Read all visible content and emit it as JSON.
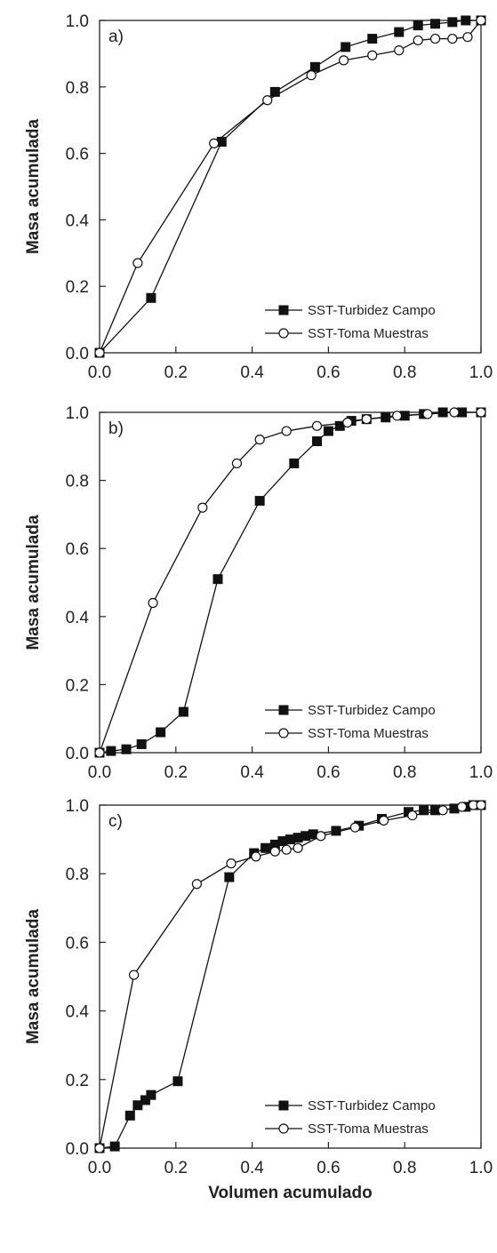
{
  "chart_data": [
    {
      "type": "line",
      "panel_label": "a)",
      "ylabel": "Masa acumulada",
      "xlabel": "",
      "xlim": [
        0,
        1
      ],
      "ylim": [
        0,
        1
      ],
      "x_ticks": [
        "0.0",
        "0.2",
        "0.4",
        "0.6",
        "0.8",
        "1.0"
      ],
      "y_ticks": [
        "0.0",
        "0.2",
        "0.4",
        "0.6",
        "0.8",
        "1.0"
      ],
      "grid": false,
      "legend_position": "bottom-right",
      "series": [
        {
          "name": "SST-Turbidez Campo",
          "marker": "square-filled",
          "x": [
            0.0,
            0.135,
            0.32,
            0.46,
            0.565,
            0.645,
            0.715,
            0.785,
            0.835,
            0.88,
            0.925,
            0.96,
            1.0
          ],
          "y": [
            0.0,
            0.165,
            0.635,
            0.785,
            0.86,
            0.92,
            0.945,
            0.965,
            0.985,
            0.99,
            0.995,
            1.0,
            1.0
          ]
        },
        {
          "name": "SST-Toma Muestras",
          "marker": "circle-open",
          "x": [
            0.0,
            0.1,
            0.3,
            0.44,
            0.555,
            0.64,
            0.715,
            0.785,
            0.835,
            0.88,
            0.925,
            0.965,
            1.0
          ],
          "y": [
            0.0,
            0.27,
            0.63,
            0.76,
            0.835,
            0.88,
            0.895,
            0.91,
            0.94,
            0.945,
            0.945,
            0.95,
            1.0
          ]
        }
      ]
    },
    {
      "type": "line",
      "panel_label": "b)",
      "ylabel": "Masa acumulada",
      "xlabel": "",
      "xlim": [
        0,
        1
      ],
      "ylim": [
        0,
        1
      ],
      "x_ticks": [
        "0.0",
        "0.2",
        "0.4",
        "0.6",
        "0.8",
        "1.0"
      ],
      "y_ticks": [
        "0.0",
        "0.2",
        "0.4",
        "0.6",
        "0.8",
        "1.0"
      ],
      "grid": false,
      "legend_position": "bottom-right",
      "series": [
        {
          "name": "SST-Turbidez Campo",
          "marker": "square-filled",
          "x": [
            0.0,
            0.03,
            0.07,
            0.11,
            0.16,
            0.22,
            0.31,
            0.42,
            0.51,
            0.57,
            0.6,
            0.63,
            0.66,
            0.7,
            0.75,
            0.8,
            0.85,
            0.9,
            0.95,
            1.0
          ],
          "y": [
            0.0,
            0.005,
            0.01,
            0.025,
            0.06,
            0.12,
            0.51,
            0.74,
            0.85,
            0.915,
            0.945,
            0.96,
            0.975,
            0.98,
            0.985,
            0.99,
            0.995,
            1.0,
            1.0,
            1.0
          ],
          "marker_step": 1
        },
        {
          "name": "SST-Toma Muestras",
          "marker": "circle-open",
          "x": [
            0.0,
            0.14,
            0.27,
            0.36,
            0.42,
            0.49,
            0.57,
            0.65,
            0.7,
            0.78,
            0.86,
            0.93,
            1.0
          ],
          "y": [
            0.0,
            0.44,
            0.72,
            0.85,
            0.92,
            0.945,
            0.96,
            0.97,
            0.98,
            0.99,
            0.995,
            1.0,
            1.0
          ]
        }
      ]
    },
    {
      "type": "line",
      "panel_label": "c)",
      "ylabel": "Masa acumulada",
      "xlabel": "Volumen acumulado",
      "xlim": [
        0,
        1
      ],
      "ylim": [
        0,
        1
      ],
      "x_ticks": [
        "0.0",
        "0.2",
        "0.4",
        "0.6",
        "0.8",
        "1.0"
      ],
      "y_ticks": [
        "0.0",
        "0.2",
        "0.4",
        "0.6",
        "0.8",
        "1.0"
      ],
      "grid": false,
      "legend_position": "bottom-right",
      "series": [
        {
          "name": "SST-Turbidez Campo",
          "marker": "square-filled",
          "x": [
            0.0,
            0.04,
            0.08,
            0.1,
            0.12,
            0.135,
            0.205,
            0.34,
            0.405,
            0.435,
            0.46,
            0.48,
            0.5,
            0.52,
            0.54,
            0.56,
            0.62,
            0.68,
            0.74,
            0.81,
            0.85,
            0.88,
            0.93,
            0.96,
            0.98,
            1.0
          ],
          "y": [
            0.0,
            0.005,
            0.095,
            0.125,
            0.14,
            0.155,
            0.195,
            0.79,
            0.86,
            0.875,
            0.885,
            0.895,
            0.9,
            0.905,
            0.91,
            0.915,
            0.925,
            0.94,
            0.96,
            0.98,
            0.985,
            0.985,
            0.99,
            0.995,
            1.0,
            1.0
          ]
        },
        {
          "name": "SST-Toma Muestras",
          "marker": "circle-open",
          "x": [
            0.0,
            0.09,
            0.255,
            0.345,
            0.41,
            0.46,
            0.49,
            0.52,
            0.58,
            0.67,
            0.745,
            0.82,
            0.9,
            0.95,
            0.98,
            1.0
          ],
          "y": [
            0.0,
            0.505,
            0.77,
            0.83,
            0.85,
            0.865,
            0.87,
            0.875,
            0.91,
            0.935,
            0.955,
            0.97,
            0.985,
            0.995,
            1.0,
            1.0
          ]
        }
      ]
    }
  ]
}
